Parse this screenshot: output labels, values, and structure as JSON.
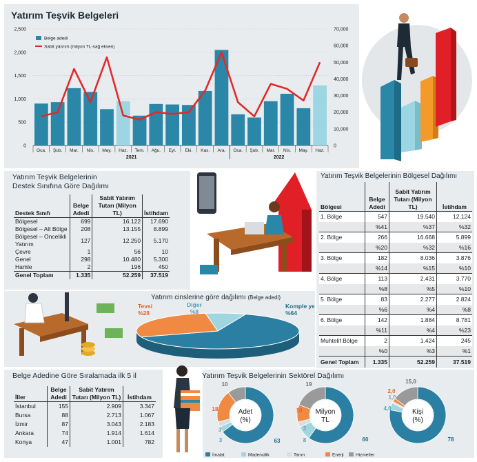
{
  "main_title": "Yatırım Teşvik Belgeleri",
  "colors": {
    "bar": "#2b87a8",
    "bar_light": "#9dd6e3",
    "line": "#e02a2a",
    "imalat": "#2b7fa3",
    "madencilik": "#9fd6e0",
    "tarim": "#d7dde3",
    "enerji": "#f08a42",
    "hizmetler": "#9a9a9a"
  },
  "chart_data": [
    {
      "type": "bar+line",
      "title": "Yatırım Teşvik Belgeleri",
      "legend": [
        "Belge adedi",
        "Sabit yatırım (milyon TL-sağ eksen)"
      ],
      "categories": [
        "Oca.",
        "Şub.",
        "Mar.",
        "Nis.",
        "May.",
        "Haz.",
        "Tem.",
        "Ağu.",
        "Eyl.",
        "Eki.",
        "Kas.",
        "Ara.",
        "Oca.",
        "Şub.",
        "Mar.",
        "Nis.",
        "May.",
        "Haz."
      ],
      "year_labels": [
        "2021",
        "2022"
      ],
      "bar_values": [
        900,
        930,
        1230,
        1150,
        780,
        950,
        640,
        890,
        880,
        870,
        1170,
        2050,
        670,
        600,
        950,
        1110,
        800,
        1290
      ],
      "highlight_indices": [
        5,
        17
      ],
      "line_values": [
        17500,
        20000,
        46000,
        26000,
        53000,
        18000,
        15500,
        20000,
        19000,
        20000,
        33000,
        56000,
        26000,
        17500,
        37000,
        34000,
        27000,
        50000
      ],
      "left_axis": {
        "min": 0,
        "max": 2500,
        "ticks": [
          "0",
          "500",
          "1,000",
          "1,500",
          "2,000",
          "2,500"
        ]
      },
      "right_axis": {
        "min": 0,
        "max": 70000,
        "ticks": [
          "0",
          "10,000",
          "20,000",
          "30,000",
          "40,000",
          "50,000",
          "60,000",
          "70,000"
        ]
      }
    },
    {
      "type": "pie",
      "title": "Yatırım cinslerine göre dağılımı",
      "title_note": "(Belge adedi)",
      "slices": [
        {
          "label": "Komple yeni",
          "pct_label": "%64",
          "value": 64
        },
        {
          "label": "Tevsi",
          "pct_label": "%28",
          "value": 28
        },
        {
          "label": "Diğer",
          "pct_label": "%8",
          "value": 8
        }
      ]
    },
    {
      "type": "donut",
      "center_label": [
        "Adet",
        "(%)"
      ],
      "slices": [
        {
          "sector": "İmalat",
          "value": 63
        },
        {
          "sector": "Madencilik",
          "value": 3
        },
        {
          "sector": "Tarım",
          "value": 3
        },
        {
          "sector": "Enerji",
          "value": 18
        },
        {
          "sector": "Hizmetler",
          "value": 10
        }
      ]
    },
    {
      "type": "donut",
      "center_label": [
        "Milyon",
        "TL"
      ],
      "slices": [
        {
          "sector": "İmalat",
          "value": 60
        },
        {
          "sector": "Madencilik",
          "value": 8
        },
        {
          "sector": "Tarım",
          "value": 3
        },
        {
          "sector": "Enerji",
          "value": 10
        },
        {
          "sector": "Hizmetler",
          "value": 19
        }
      ]
    },
    {
      "type": "donut",
      "center_label": [
        "Kişi",
        "(%)"
      ],
      "slices": [
        {
          "sector": "İmalat",
          "value": 78
        },
        {
          "sector": "Madencilik",
          "value": 4.0
        },
        {
          "sector": "Tarım",
          "value": 1.0
        },
        {
          "sector": "Enerji",
          "value": 2.0
        },
        {
          "sector": "Hizmetler",
          "value": 15.0
        }
      ],
      "labels": [
        "78",
        "4,0",
        "1,0",
        "2,0",
        "15,0"
      ]
    }
  ],
  "sector_legend": [
    "İmalat",
    "Madencilik",
    "Tarım",
    "Enerji",
    "Hizmetler"
  ],
  "destek": {
    "title_line1": "Yatırım Teşvik Belgelerinin",
    "title_line2": "Destek Sınıfına Göre Dağılımı",
    "headers": [
      "Destek Sınıfı",
      "Belge Adedi",
      "Sabit Yatırım Tutarı (Milyon TL)",
      "İstihdam"
    ],
    "rows": [
      [
        "Bölgesel",
        "699",
        "16.122",
        "17.690"
      ],
      [
        "Bölgesel – Alt Bölge",
        "208",
        "13.155",
        "8.899"
      ],
      [
        "Bölgesel – Öncelikli Yatırım",
        "127",
        "12.250",
        "5.170"
      ],
      [
        "Çevre",
        "1",
        "56",
        "10"
      ],
      [
        "Genel",
        "298",
        "10.480",
        "5.300"
      ],
      [
        "Hamle",
        "2",
        "196",
        "450"
      ]
    ],
    "total": [
      "Genel Toplam",
      "1.335",
      "52.259",
      "37.519"
    ]
  },
  "bolgesel": {
    "title": "Yatırım Teşvik Belgelerinin Bölgesel Dağılımı",
    "headers": [
      "Bölgesi",
      "Belge Adedi",
      "Sabit Yatırım Tutarı (Milyon TL)",
      "İstihdam"
    ],
    "rows": [
      {
        "name": "1. Bölge",
        "a": "547",
        "b": "19.540",
        "c": "12.124",
        "pa": "%41",
        "pb": "%37",
        "pc": "%32"
      },
      {
        "name": "2. Bölge",
        "a": "266",
        "b": "16.668",
        "c": "5.899",
        "pa": "%20",
        "pb": "%32",
        "pc": "%16"
      },
      {
        "name": "3. Bölge",
        "a": "182",
        "b": "8.036",
        "c": "3.876",
        "pa": "%14",
        "pb": "%15",
        "pc": "%10"
      },
      {
        "name": "4. Bölge",
        "a": "113",
        "b": "2.431",
        "c": "3.770",
        "pa": "%8",
        "pb": "%5",
        "pc": "%10"
      },
      {
        "name": "5. Bölge",
        "a": "83",
        "b": "2.277",
        "c": "2.824",
        "pa": "%6",
        "pb": "%4",
        "pc": "%8"
      },
      {
        "name": "6. Bölge",
        "a": "142",
        "b": "1.884",
        "c": "8.781",
        "pa": "%11",
        "pb": "%4",
        "pc": "%23"
      },
      {
        "name": "Muhtelif Bölge",
        "a": "2",
        "b": "1.424",
        "c": "245",
        "pa": "%0",
        "pb": "%3",
        "pc": "%1"
      }
    ],
    "total": [
      "Genel Toplam",
      "1.335",
      "52.259",
      "37.519"
    ]
  },
  "iller": {
    "title": "Belge Adedine Göre Sıralamada ilk 5 il",
    "headers": [
      "İller",
      "Belge Adedi",
      "Sabit Yatırım Tutarı (Milyon TL)",
      "İstihdam"
    ],
    "rows": [
      [
        "İstanbul",
        "155",
        "2.909",
        "3.347"
      ],
      [
        "Bursa",
        "88",
        "2.713",
        "1.067"
      ],
      [
        "İzmir",
        "87",
        "3.043",
        "2.183"
      ],
      [
        "Ankara",
        "74",
        "1.914",
        "1.614"
      ],
      [
        "Konya",
        "47",
        "1.001",
        "782"
      ]
    ]
  },
  "sektorel_title": "Yatırım Teşvik Belgelerinin Sektörel Dağılımı"
}
